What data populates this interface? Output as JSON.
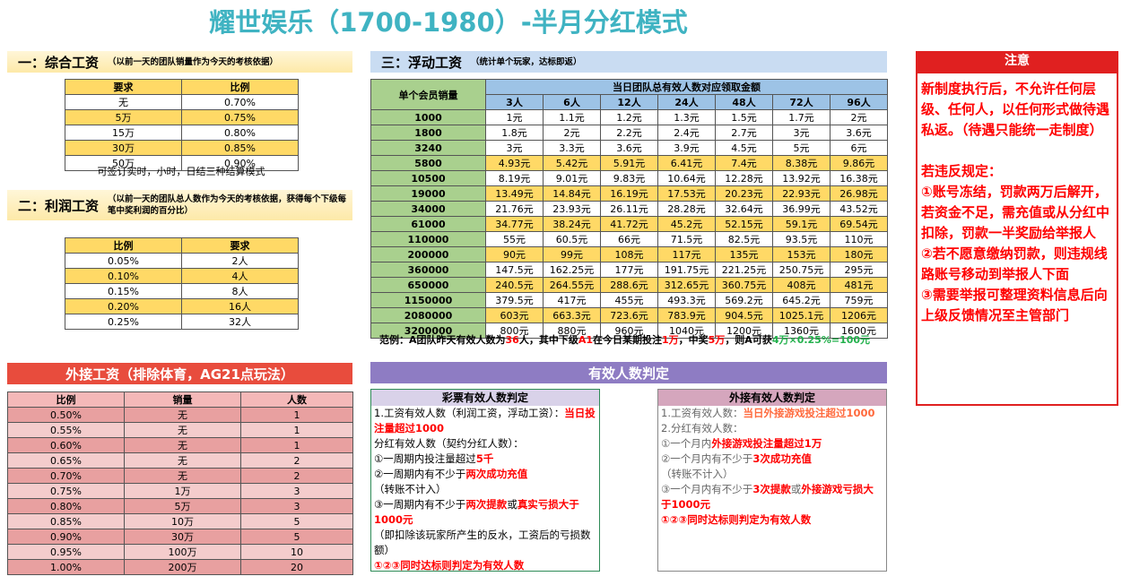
{
  "title": "耀世娱乐（1700-1980）-半月分红模式",
  "salary": {
    "heading": "一：综合工资",
    "note": "（以前一天的团队销量作为今天的考核依据）",
    "table": {
      "header": [
        "要求",
        "比例"
      ],
      "rows": [
        [
          "无",
          "0.70%"
        ],
        [
          "5万",
          "0.75%"
        ],
        [
          "15万",
          "0.80%"
        ],
        [
          "30万",
          "0.85%"
        ],
        [
          "50万",
          "0.90%"
        ]
      ]
    },
    "footnote": "可签订实时，小时，日结三种结算模式"
  },
  "profit": {
    "heading": "二：利润工资",
    "note": "（以前一天的团队总人数作为今天的考核依据，获得每个下级每笔中奖利润的百分比）",
    "table": {
      "header": [
        "比例",
        "要求"
      ],
      "rows": [
        [
          "0.05%",
          "2人"
        ],
        [
          "0.10%",
          "4人"
        ],
        [
          "0.15%",
          "8人"
        ],
        [
          "0.20%",
          "16人"
        ],
        [
          "0.25%",
          "32人"
        ]
      ]
    }
  },
  "floating": {
    "heading": "三：浮动工资",
    "note": "（统计单个玩家，达标即返）",
    "table": {
      "corner": "单个会员销量",
      "group": "当日团队总有效人数对应领取金额",
      "columns": [
        "3人",
        "6人",
        "12人",
        "24人",
        "48人",
        "72人",
        "96人"
      ],
      "rows": [
        {
          "sales": "1000",
          "amounts": [
            "1元",
            "1.1元",
            "1.2元",
            "1.3元",
            "1.5元",
            "1.7元",
            "2元"
          ]
        },
        {
          "sales": "1800",
          "amounts": [
            "1.8元",
            "2元",
            "2.2元",
            "2.4元",
            "2.7元",
            "3元",
            "3.6元"
          ]
        },
        {
          "sales": "3240",
          "amounts": [
            "3元",
            "3.3元",
            "3.6元",
            "3.9元",
            "4.5元",
            "5元",
            "6元"
          ]
        },
        {
          "sales": "5800",
          "amounts": [
            "4.93元",
            "5.42元",
            "5.91元",
            "6.41元",
            "7.4元",
            "8.38元",
            "9.86元"
          ]
        },
        {
          "sales": "10500",
          "amounts": [
            "8.19元",
            "9.01元",
            "9.83元",
            "10.64元",
            "12.28元",
            "13.92元",
            "16.38元"
          ]
        },
        {
          "sales": "19000",
          "amounts": [
            "13.49元",
            "14.84元",
            "16.19元",
            "17.53元",
            "20.23元",
            "22.93元",
            "26.98元"
          ]
        },
        {
          "sales": "34000",
          "amounts": [
            "21.76元",
            "23.93元",
            "26.11元",
            "28.28元",
            "32.64元",
            "36.99元",
            "43.52元"
          ]
        },
        {
          "sales": "61000",
          "amounts": [
            "34.77元",
            "38.24元",
            "41.72元",
            "45.2元",
            "52.15元",
            "59.1元",
            "69.54元"
          ]
        },
        {
          "sales": "110000",
          "amounts": [
            "55元",
            "60.5元",
            "66元",
            "71.5元",
            "82.5元",
            "93.5元",
            "110元"
          ]
        },
        {
          "sales": "200000",
          "amounts": [
            "90元",
            "99元",
            "108元",
            "117元",
            "135元",
            "153元",
            "180元"
          ]
        },
        {
          "sales": "360000",
          "amounts": [
            "147.5元",
            "162.25元",
            "177元",
            "191.75元",
            "221.25元",
            "250.75元",
            "295元"
          ]
        },
        {
          "sales": "650000",
          "amounts": [
            "240.5元",
            "264.55元",
            "288.6元",
            "312.65元",
            "360.75元",
            "408元",
            "481元"
          ]
        },
        {
          "sales": "1150000",
          "amounts": [
            "379.5元",
            "417元",
            "455元",
            "493.3元",
            "569.2元",
            "645.2元",
            "759元"
          ]
        },
        {
          "sales": "2080000",
          "amounts": [
            "603元",
            "663.3元",
            "723.6元",
            "783.9元",
            "904.5元",
            "1025.1元",
            "1206元"
          ]
        },
        {
          "sales": "3200000",
          "amounts": [
            "800元",
            "880元",
            "960元",
            "1040元",
            "1200元",
            "1360元",
            "1600元"
          ]
        }
      ]
    },
    "example": [
      "范例：A团队昨天有效人数为",
      {
        "text": "36",
        "color": "#ff0000"
      },
      "人，其中下级",
      {
        "text": "A1",
        "color": "#ff0000"
      },
      "在今日某期投注",
      {
        "text": "1万",
        "color": "#ff0000"
      },
      "，中奖",
      {
        "text": "5万",
        "color": "#ff0000"
      },
      "，则A可获",
      {
        "text": "4万×0.25%=100元",
        "color": "#22b14c"
      }
    ]
  },
  "external": {
    "heading": "外接工资（排除体育，AG21点玩法）",
    "table": {
      "header": [
        "比例",
        "销量",
        "人数"
      ],
      "rows": [
        [
          "0.50%",
          "无",
          "1"
        ],
        [
          "0.55%",
          "无",
          "1"
        ],
        [
          "0.60%",
          "无",
          "1"
        ],
        [
          "0.65%",
          "无",
          "2"
        ],
        [
          "0.70%",
          "无",
          "2"
        ],
        [
          "0.75%",
          "1万",
          "3"
        ],
        [
          "0.80%",
          "5万",
          "3"
        ],
        [
          "0.85%",
          "10万",
          "5"
        ],
        [
          "0.90%",
          "30万",
          "5"
        ],
        [
          "0.95%",
          "100万",
          "10"
        ],
        [
          "1.00%",
          "200万",
          "20"
        ]
      ]
    }
  },
  "effective": {
    "heading": "有效人数判定",
    "lottery": {
      "title": "彩票有效人数判定",
      "lines": [
        [
          "1.工资有效人数（利润工资，浮动工资）：",
          {
            "text": "当日投注量超过1000",
            "color": "#ff0000"
          }
        ],
        [
          "分红有效人数（契约分红人数）："
        ],
        [
          "①一周期内投注量超过",
          {
            "text": "5千",
            "color": "#ff0000"
          }
        ],
        [
          "②一周期内有不少于",
          {
            "text": "两次成功充值",
            "color": "#ff0000"
          },
          "（转账不计入）"
        ],
        [
          "③一周期内有不少于",
          {
            "text": "两次提款",
            "color": "#ff0000"
          },
          "或",
          {
            "text": "真实亏损大于1000元",
            "color": "#ff0000"
          }
        ],
        [
          "（即扣除该玩家所产生的反水，工资后的亏损数额）"
        ],
        [
          {
            "text": "①②③同时达标则判定为有效人数",
            "color": "#ff0000"
          }
        ]
      ]
    },
    "external": {
      "title": "外接有效人数判定",
      "lines": [
        [
          "1.工资有效人数：",
          {
            "text": "当日外接游戏投注超过1000",
            "color": "#ff6a3d"
          }
        ],
        [
          "2.分红有效人数："
        ],
        [
          "①一个月内",
          {
            "text": "外接游戏投注量超过1万",
            "color": "#ff0000"
          }
        ],
        [
          "②一个月内有不少于",
          {
            "text": "3次成功充值",
            "color": "#ff0000"
          },
          "（转账不计入）"
        ],
        [
          "③一个月内有不少于",
          {
            "text": "3次提款",
            "color": "#ff0000"
          },
          "或",
          {
            "text": "外接游戏亏损大于1000元",
            "color": "#ff0000"
          }
        ],
        [
          {
            "text": "①②③同时达标则判定为有效人数",
            "color": "#ff0000"
          }
        ]
      ]
    }
  },
  "notice": {
    "title": "注意",
    "paragraphs": [
      "新制度执行后，不允许任何层级、任何人，以任何形式做待遇私返。（待遇只能统一走制度）",
      "若违反规定：",
      "①账号冻结，罚款两万后解开，若资金不足，需充值或从分红中扣除，罚款一半奖励给举报人",
      "②若不愿意缴纳罚款，则违规线路账号移动到举报人下面",
      "③需要举报可整理资料信息后向上级反馈情况至主管部门"
    ]
  }
}
